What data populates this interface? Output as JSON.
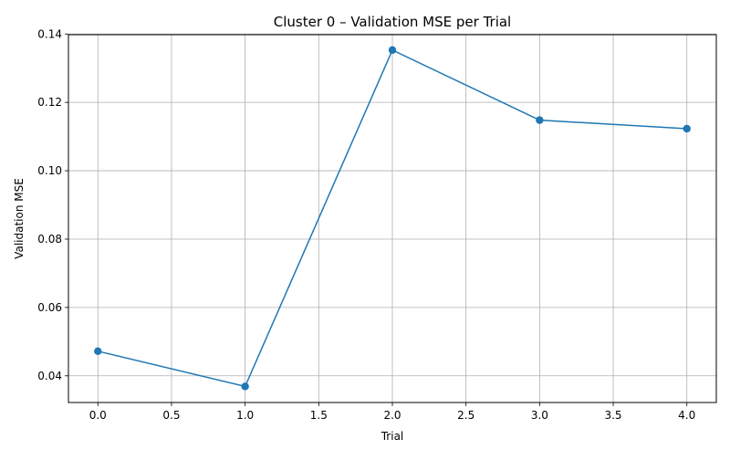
{
  "chart_data": {
    "type": "line",
    "title": "Cluster 0 – Validation MSE per Trial",
    "xlabel": "Trial",
    "ylabel": "Validation MSE",
    "x": [
      0,
      1,
      2,
      3,
      4
    ],
    "series": [
      {
        "values": [
          0.0472,
          0.0369,
          0.1353,
          0.1148,
          0.1123
        ],
        "color": "#1f77b4",
        "marker": "circle"
      }
    ],
    "xlim": [
      -0.2,
      4.2
    ],
    "ylim": [
      0.0322,
      0.1398
    ],
    "x_ticks": [
      0.0,
      0.5,
      1.0,
      1.5,
      2.0,
      2.5,
      3.0,
      3.5,
      4.0
    ],
    "x_tick_labels": [
      "0.0",
      "0.5",
      "1.0",
      "1.5",
      "2.0",
      "2.5",
      "3.0",
      "3.5",
      "4.0"
    ],
    "y_ticks": [
      0.04,
      0.06,
      0.08,
      0.1,
      0.12,
      0.14
    ],
    "y_tick_labels": [
      "0.04",
      "0.06",
      "0.08",
      "0.10",
      "0.12",
      "0.14"
    ],
    "grid": true,
    "grid_color": "#b0b0b0",
    "legend": false
  }
}
